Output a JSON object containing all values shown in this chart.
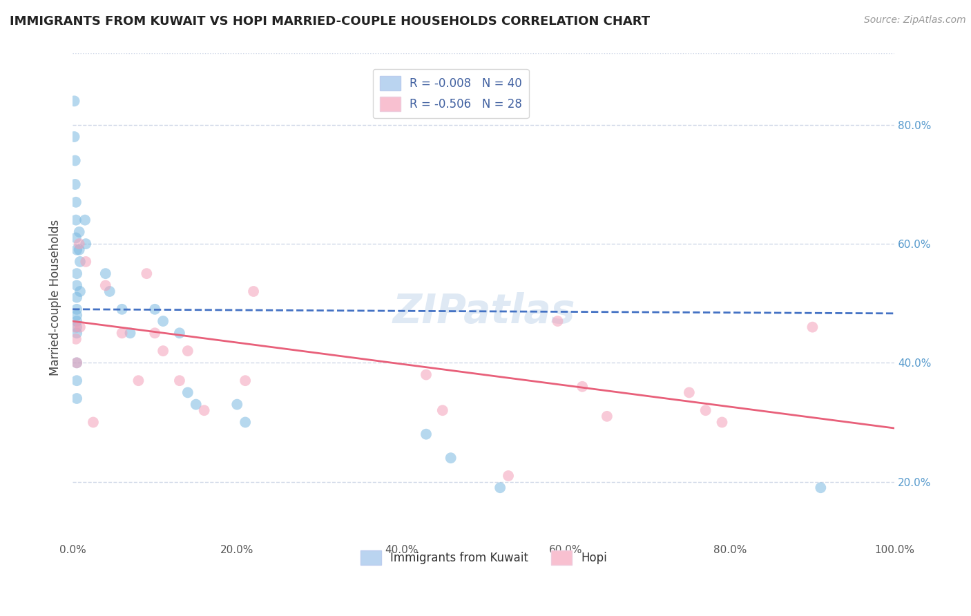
{
  "title": "IMMIGRANTS FROM KUWAIT VS HOPI MARRIED-COUPLE HOUSEHOLDS CORRELATION CHART",
  "source": "Source: ZipAtlas.com",
  "ylabel": "Married-couple Households",
  "xlim": [
    0.0,
    1.0
  ],
  "ylim": [
    0.1,
    0.92
  ],
  "xtick_labels": [
    "0.0%",
    "20.0%",
    "40.0%",
    "60.0%",
    "80.0%",
    "100.0%"
  ],
  "xtick_vals": [
    0.0,
    0.2,
    0.4,
    0.6,
    0.8,
    1.0
  ],
  "ytick_labels": [
    "20.0%",
    "40.0%",
    "60.0%",
    "80.0%"
  ],
  "ytick_vals": [
    0.2,
    0.4,
    0.6,
    0.8
  ],
  "watermark": "ZIPatlas",
  "blue_scatter_x": [
    0.002,
    0.002,
    0.003,
    0.003,
    0.004,
    0.004,
    0.004,
    0.005,
    0.005,
    0.005,
    0.005,
    0.005,
    0.005,
    0.005,
    0.005,
    0.005,
    0.005,
    0.005,
    0.005,
    0.008,
    0.008,
    0.009,
    0.009,
    0.015,
    0.016,
    0.04,
    0.045,
    0.06,
    0.07,
    0.1,
    0.11,
    0.13,
    0.14,
    0.15,
    0.2,
    0.21,
    0.43,
    0.46,
    0.52,
    0.91
  ],
  "blue_scatter_y": [
    0.84,
    0.78,
    0.74,
    0.7,
    0.67,
    0.64,
    0.61,
    0.59,
    0.55,
    0.53,
    0.51,
    0.49,
    0.48,
    0.47,
    0.46,
    0.45,
    0.4,
    0.37,
    0.34,
    0.62,
    0.59,
    0.57,
    0.52,
    0.64,
    0.6,
    0.55,
    0.52,
    0.49,
    0.45,
    0.49,
    0.47,
    0.45,
    0.35,
    0.33,
    0.33,
    0.3,
    0.28,
    0.24,
    0.19,
    0.19
  ],
  "pink_scatter_x": [
    0.003,
    0.004,
    0.005,
    0.008,
    0.009,
    0.016,
    0.025,
    0.04,
    0.06,
    0.08,
    0.09,
    0.1,
    0.11,
    0.13,
    0.14,
    0.16,
    0.21,
    0.22,
    0.43,
    0.45,
    0.53,
    0.59,
    0.62,
    0.65,
    0.75,
    0.77,
    0.79,
    0.9
  ],
  "pink_scatter_y": [
    0.46,
    0.44,
    0.4,
    0.6,
    0.46,
    0.57,
    0.3,
    0.53,
    0.45,
    0.37,
    0.55,
    0.45,
    0.42,
    0.37,
    0.42,
    0.32,
    0.37,
    0.52,
    0.38,
    0.32,
    0.21,
    0.47,
    0.36,
    0.31,
    0.35,
    0.32,
    0.3,
    0.46
  ],
  "blue_line_x": [
    0.0,
    1.0
  ],
  "blue_line_y": [
    0.49,
    0.483
  ],
  "pink_line_x": [
    0.0,
    1.0
  ],
  "pink_line_y": [
    0.47,
    0.29
  ],
  "blue_color": "#7ab8e0",
  "pink_color": "#f4a0b8",
  "blue_line_color": "#4472c4",
  "pink_line_color": "#e8607a",
  "grid_color": "#d0d8e8",
  "background_color": "#ffffff",
  "ytick_color": "#5599cc",
  "xtick_color": "#555555",
  "legend_blue_face": "#bad4f0",
  "legend_pink_face": "#f8c0d0",
  "legend_text_color": "#4060a0"
}
